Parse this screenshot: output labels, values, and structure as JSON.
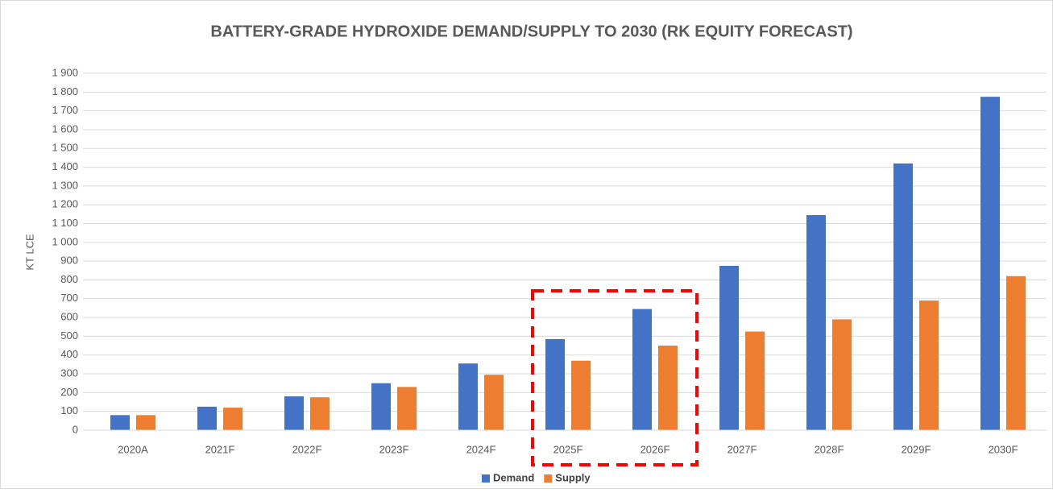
{
  "chart_data": {
    "type": "bar",
    "title": "BATTERY-GRADE HYDROXIDE DEMAND/SUPPLY TO 2030 (RK EQUITY FORECAST)",
    "y_label": "KT LCE",
    "categories": [
      "2020A",
      "2021F",
      "2022F",
      "2023F",
      "2024F",
      "2025F",
      "2026F",
      "2027F",
      "2028F",
      "2029F",
      "2030F"
    ],
    "series": [
      {
        "name": "Demand",
        "color": "#4472c4",
        "values": [
          80,
          125,
          180,
          250,
          355,
          485,
          645,
          875,
          1145,
          1420,
          1775
        ]
      },
      {
        "name": "Supply",
        "color": "#ed7d31",
        "values": [
          80,
          120,
          175,
          230,
          295,
          370,
          450,
          525,
          590,
          690,
          820
        ]
      }
    ],
    "ylim": [
      0,
      1900
    ],
    "yticks": [
      0,
      100,
      200,
      300,
      400,
      500,
      600,
      700,
      800,
      900,
      {
        "value": 1000,
        "label": "1 000"
      },
      {
        "value": 1100,
        "label": "1 100"
      },
      {
        "value": 1200,
        "label": "1 200"
      },
      {
        "value": 1300,
        "label": "1 300"
      },
      {
        "value": 1400,
        "label": "1 400"
      },
      {
        "value": 1500,
        "label": "1 500"
      },
      {
        "value": 1600,
        "label": "1 600"
      },
      {
        "value": 1700,
        "label": "1 700"
      },
      {
        "value": 1800,
        "label": "1 800"
      },
      {
        "value": 1900,
        "label": "1 900"
      }
    ],
    "grid": true,
    "legend": "bottom"
  }
}
